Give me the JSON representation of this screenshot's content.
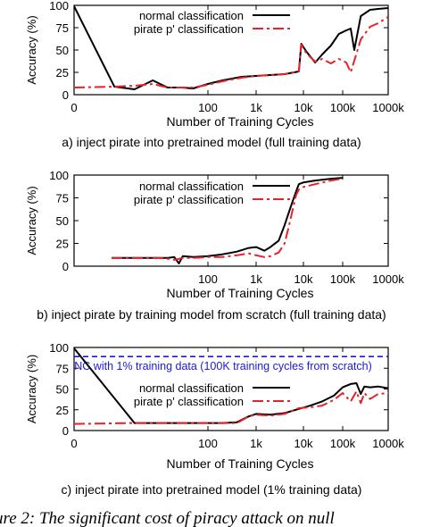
{
  "chart_data": [
    {
      "type": "line",
      "caption": "a) inject pirate into pretrained model (full training data)",
      "xlabel": "Number of Training Cycles",
      "ylabel": "Accuracy (%)",
      "xscale": "log (with 0)",
      "ylim": [
        0,
        100
      ],
      "xticks": [
        "0",
        "100",
        "1k",
        "10k",
        "100k",
        "1000k"
      ],
      "yticks": [
        "0",
        "25",
        "50",
        "75",
        "100"
      ],
      "legend_position": "top-left",
      "series": [
        {
          "name": "normal classification",
          "color": "#000000",
          "dash": "solid",
          "x": [
            0,
            4,
            8,
            15,
            25,
            40,
            60,
            100,
            200,
            500,
            1000,
            2000,
            4000,
            8000,
            9000,
            12000,
            20000,
            30000,
            50000,
            80000,
            120000,
            150000,
            180000,
            250000,
            400000,
            600000,
            1000000
          ],
          "y": [
            99,
            9,
            6,
            16,
            8,
            8,
            7,
            12,
            16,
            20,
            21,
            22,
            23,
            26,
            57,
            48,
            36,
            45,
            55,
            68,
            72,
            74,
            50,
            88,
            95,
            96,
            97
          ]
        },
        {
          "name": "pirate p' classification",
          "color": "#e8202a",
          "dash": "dashed",
          "x": [
            0,
            4,
            8,
            15,
            25,
            40,
            60,
            100,
            200,
            500,
            1000,
            2000,
            4000,
            8000,
            9000,
            12000,
            20000,
            30000,
            50000,
            80000,
            120000,
            150000,
            180000,
            250000,
            400000,
            600000,
            1000000
          ],
          "y": [
            8,
            9,
            10,
            12,
            8,
            8,
            8,
            11,
            15,
            19,
            21,
            22,
            23,
            26,
            56,
            46,
            37,
            40,
            35,
            40,
            36,
            25,
            38,
            62,
            76,
            80,
            87
          ]
        }
      ]
    },
    {
      "type": "line",
      "caption": "b) inject pirate by training model from scratch (full training data)",
      "xlabel": "Number of Training Cycles",
      "ylabel": "Accuracy (%)",
      "xscale": "log",
      "ylim": [
        0,
        100
      ],
      "xticks": [
        "100",
        "1k",
        "10k",
        "100k",
        "1000k"
      ],
      "yticks": [
        "0",
        "25",
        "50",
        "75",
        "100"
      ],
      "legend_position": "top-left",
      "series": [
        {
          "name": "normal classification",
          "color": "#000000",
          "dash": "solid",
          "x": [
            1,
            5,
            10,
            15,
            20,
            25,
            30,
            50,
            100,
            200,
            400,
            700,
            1000,
            1500,
            2000,
            3000,
            4000,
            5000,
            6000,
            7000,
            8000,
            10000,
            20000,
            50000,
            100000
          ],
          "y": [
            9,
            9,
            9,
            9,
            10,
            3,
            11,
            10,
            11,
            13,
            16,
            20,
            21,
            17,
            21,
            28,
            45,
            60,
            72,
            82,
            90,
            92,
            94,
            96,
            97
          ]
        },
        {
          "name": "pirate p' classification",
          "color": "#e8202a",
          "dash": "dashed",
          "x": [
            1,
            5,
            10,
            15,
            20,
            25,
            30,
            50,
            100,
            200,
            400,
            700,
            1000,
            1500,
            2000,
            3000,
            4000,
            5000,
            6000,
            7000,
            8000,
            10000,
            20000,
            50000,
            100000
          ],
          "y": [
            9,
            9,
            9,
            8,
            7,
            8,
            9,
            9,
            10,
            10,
            12,
            14,
            12,
            10,
            11,
            15,
            25,
            45,
            63,
            78,
            84,
            87,
            90,
            94,
            96
          ]
        }
      ]
    },
    {
      "type": "line",
      "caption": "c) inject pirate into pretrained model (1% training data)",
      "xlabel": "Number of Training Cycles",
      "ylabel": "Accuracy (%)",
      "xscale": "log (with 0)",
      "ylim": [
        0,
        100
      ],
      "xticks": [
        "0",
        "100",
        "1k",
        "10k",
        "100k",
        "1000k"
      ],
      "yticks": [
        "0",
        "25",
        "50",
        "75",
        "100"
      ],
      "legend_position": "top-left",
      "annotation": "NC with 1% training data (100K training cycles from scratch)",
      "reference_line": {
        "y": 89,
        "color": "#1a1ad6",
        "dash": "dashed"
      },
      "series": [
        {
          "name": "normal classification",
          "color": "#000000",
          "dash": "solid",
          "x": [
            0,
            8,
            15,
            30,
            60,
            100,
            200,
            400,
            700,
            1000,
            2000,
            4000,
            8000,
            15000,
            30000,
            60000,
            100000,
            150000,
            200000,
            250000,
            300000,
            400000,
            600000,
            1000000
          ],
          "y": [
            99,
            9,
            9,
            9,
            9,
            9,
            9,
            10,
            17,
            20,
            19,
            21,
            26,
            30,
            35,
            42,
            52,
            56,
            57,
            44,
            53,
            52,
            53,
            51
          ]
        },
        {
          "name": "pirate p' classification",
          "color": "#e8202a",
          "dash": "dashed",
          "x": [
            0,
            8,
            15,
            30,
            60,
            100,
            200,
            400,
            700,
            1000,
            2000,
            4000,
            8000,
            15000,
            30000,
            60000,
            100000,
            150000,
            200000,
            250000,
            300000,
            400000,
            600000,
            1000000
          ],
          "y": [
            8,
            9,
            9,
            9,
            9,
            9,
            9,
            9,
            17,
            19,
            18,
            20,
            27,
            28,
            30,
            37,
            45,
            35,
            47,
            33,
            45,
            38,
            44,
            45
          ]
        }
      ]
    }
  ],
  "footer_caption": "ure 2: The significant cost of piracy attack on null"
}
